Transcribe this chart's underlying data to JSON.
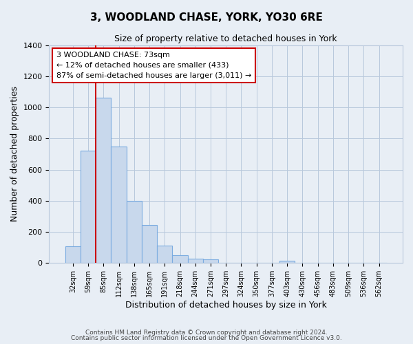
{
  "title": "3, WOODLAND CHASE, YORK, YO30 6RE",
  "subtitle": "Size of property relative to detached houses in York",
  "xlabel": "Distribution of detached houses by size in York",
  "ylabel": "Number of detached properties",
  "bar_labels": [
    "32sqm",
    "59sqm",
    "85sqm",
    "112sqm",
    "138sqm",
    "165sqm",
    "191sqm",
    "218sqm",
    "244sqm",
    "271sqm",
    "297sqm",
    "324sqm",
    "350sqm",
    "377sqm",
    "403sqm",
    "430sqm",
    "456sqm",
    "483sqm",
    "509sqm",
    "536sqm",
    "562sqm"
  ],
  "bar_values": [
    108,
    720,
    1060,
    748,
    400,
    243,
    110,
    48,
    28,
    22,
    0,
    0,
    0,
    0,
    13,
    0,
    0,
    0,
    0,
    0,
    0
  ],
  "bar_color": "#c8d8ec",
  "bar_edge_color": "#7aabe0",
  "vline_x_index": 2,
  "vline_color": "#cc0000",
  "ylim": [
    0,
    1400
  ],
  "yticks": [
    0,
    200,
    400,
    600,
    800,
    1000,
    1200,
    1400
  ],
  "annotation_line1": "3 WOODLAND CHASE: 73sqm",
  "annotation_line2": "← 12% of detached houses are smaller (433)",
  "annotation_line3": "87% of semi-detached houses are larger (3,011) →",
  "footer_line1": "Contains HM Land Registry data © Crown copyright and database right 2024.",
  "footer_line2": "Contains public sector information licensed under the Open Government Licence v3.0.",
  "background_color": "#e8eef5",
  "plot_bg_color": "#e8eef5",
  "grid_color": "#b8c8dc"
}
